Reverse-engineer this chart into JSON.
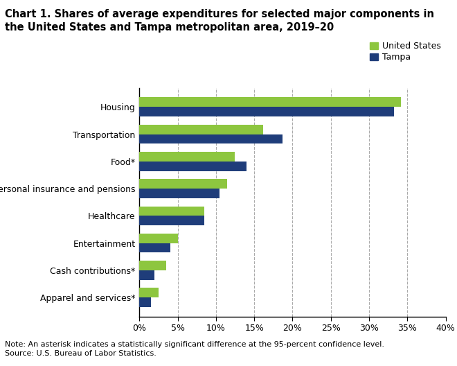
{
  "categories": [
    "Apparel and services*",
    "Cash contributions*",
    "Entertainment",
    "Healthcare",
    "Personal insurance and pensions",
    "Food*",
    "Transportation",
    "Housing"
  ],
  "us_values": [
    2.5,
    3.5,
    5.0,
    8.5,
    11.5,
    12.5,
    16.2,
    34.2
  ],
  "tampa_values": [
    1.5,
    2.0,
    4.0,
    8.5,
    10.5,
    14.0,
    18.7,
    33.3
  ],
  "us_color": "#8dc63f",
  "tampa_color": "#1f3d7a",
  "title": "Chart 1. Shares of average expenditures for selected major components in\nthe United States and Tampa metropolitan area, 2019–20",
  "legend_us": "United States",
  "legend_tampa": "Tampa",
  "xlim": [
    0,
    40
  ],
  "xticks": [
    0,
    5,
    10,
    15,
    20,
    25,
    30,
    35,
    40
  ],
  "xticklabels": [
    "0%",
    "5%",
    "10%",
    "15%",
    "20%",
    "25%",
    "30%",
    "35%",
    "40%"
  ],
  "note": "Note: An asterisk indicates a statistically significant difference at the 95-percent confidence level.",
  "source": "Source: U.S. Bureau of Labor Statistics.",
  "background_color": "#ffffff",
  "grid_color": "#aaaaaa",
  "bar_height": 0.35,
  "title_fontsize": 10.5,
  "label_fontsize": 9,
  "tick_fontsize": 9,
  "note_fontsize": 8,
  "legend_fontsize": 9
}
